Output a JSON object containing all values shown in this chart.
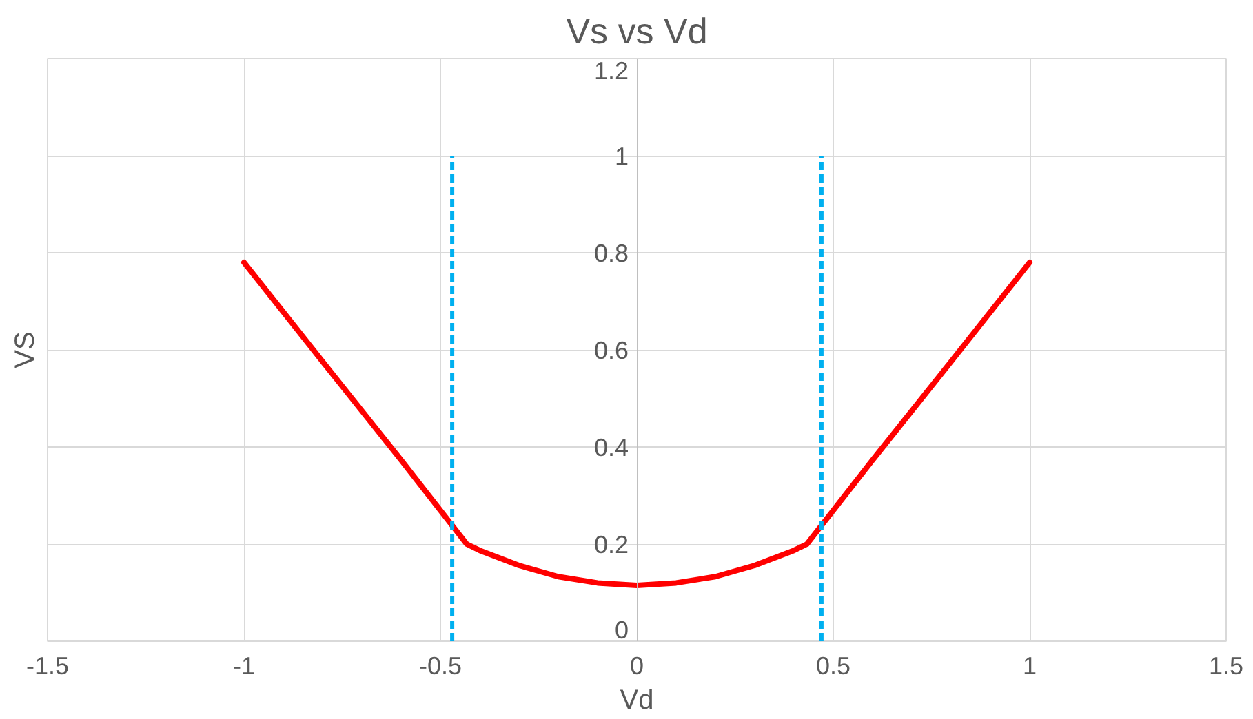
{
  "chart_data": {
    "type": "line",
    "title": "Vs vs Vd",
    "xlabel": "Vd",
    "ylabel": "VS",
    "series": [
      {
        "color": "#ff0000",
        "x": [
          -1,
          -0.8,
          -0.6,
          -0.433,
          -0.4,
          -0.3,
          -0.2,
          -0.1,
          0,
          0.1,
          0.2,
          0.3,
          0.4,
          0.433,
          0.6,
          0.8,
          1
        ],
        "values": [
          0.78,
          0.576,
          0.373,
          0.2,
          0.187,
          0.156,
          0.133,
          0.12,
          0.115,
          0.12,
          0.133,
          0.156,
          0.187,
          0.2,
          0.373,
          0.576,
          0.78
        ],
        "line_style": "solid"
      },
      {
        "color": "#00b0f0",
        "x": [
          -0.47,
          -0.47
        ],
        "values": [
          0,
          1
        ],
        "line_style": "dashed"
      },
      {
        "color": "#00b0f0",
        "x": [
          0.47,
          0.47
        ],
        "values": [
          0,
          1
        ],
        "line_style": "dashed"
      }
    ],
    "xlim": [
      -1.5,
      1.5
    ],
    "xticks": [
      -1.5,
      -1,
      -0.5,
      0,
      0.5,
      1,
      1.5
    ],
    "ylim": [
      0,
      1.2
    ],
    "yticks": [
      0,
      0.2,
      0.4,
      0.6,
      0.8,
      1,
      1.2
    ],
    "grid": true,
    "marker": "none"
  }
}
